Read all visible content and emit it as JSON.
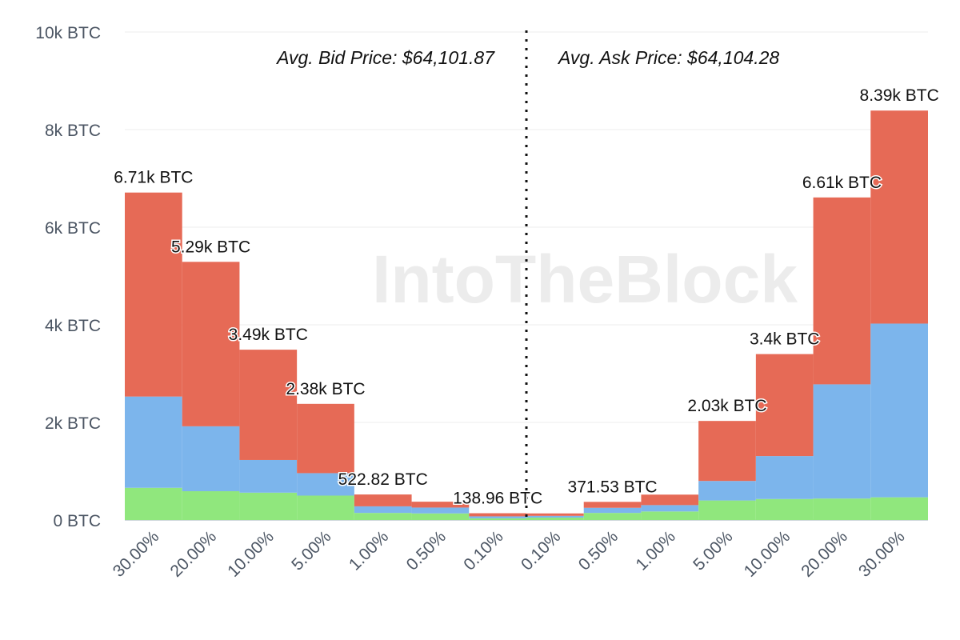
{
  "watermark": "IntoTheBlock",
  "chart_data": {
    "type": "bar",
    "stacked": true,
    "categories": [
      "30.00%",
      "20.00%",
      "10.00%",
      "5.00%",
      "1.00%",
      "0.50%",
      "0.10%",
      "0.10%",
      "0.50%",
      "1.00%",
      "5.00%",
      "10.00%",
      "20.00%",
      "30.00%"
    ],
    "series": [
      {
        "color": "#90e77d",
        "values": [
          660,
          590,
          560,
          500,
          145,
          135,
          35,
          50,
          145,
          175,
          400,
          430,
          440,
          465
        ]
      },
      {
        "color": "#7cb5ec",
        "values": [
          1870,
          1330,
          670,
          460,
          135,
          120,
          40,
          35,
          105,
          130,
          400,
          880,
          2340,
          3560
        ]
      },
      {
        "color": "#e66a56",
        "values": [
          4180,
          3370,
          2260,
          1420,
          242.82,
          120,
          63.96,
          50,
          121.53,
          215,
          1230,
          2090,
          3830,
          4365
        ]
      }
    ],
    "totals": [
      6710,
      5290,
      3490,
      2380,
      522.82,
      375,
      138.96,
      135,
      371.53,
      520,
      2030,
      3400,
      6610,
      8390
    ],
    "data_labels": [
      "6.71k BTC",
      "5.29k BTC",
      "3.49k BTC",
      "2.38k BTC",
      "522.82 BTC",
      "",
      "138.96 BTC",
      "",
      "371.53 BTC",
      "",
      "2.03k BTC",
      "3.4k BTC",
      "6.61k BTC",
      "8.39k BTC"
    ],
    "y_ticks": [
      {
        "value": 0,
        "label": "0 BTC"
      },
      {
        "value": 2000,
        "label": "2k BTC"
      },
      {
        "value": 4000,
        "label": "4k BTC"
      },
      {
        "value": 6000,
        "label": "6k BTC"
      },
      {
        "value": 8000,
        "label": "8k BTC"
      },
      {
        "value": 10000,
        "label": "10k BTC"
      }
    ],
    "ylim": [
      0,
      10000
    ],
    "grid": true,
    "annotations": {
      "bid": "Avg. Bid Price: $64,101.87",
      "ask": "Avg. Ask Price: $64,104.28"
    },
    "divider": "dotted vertical line between bid and ask sides"
  }
}
